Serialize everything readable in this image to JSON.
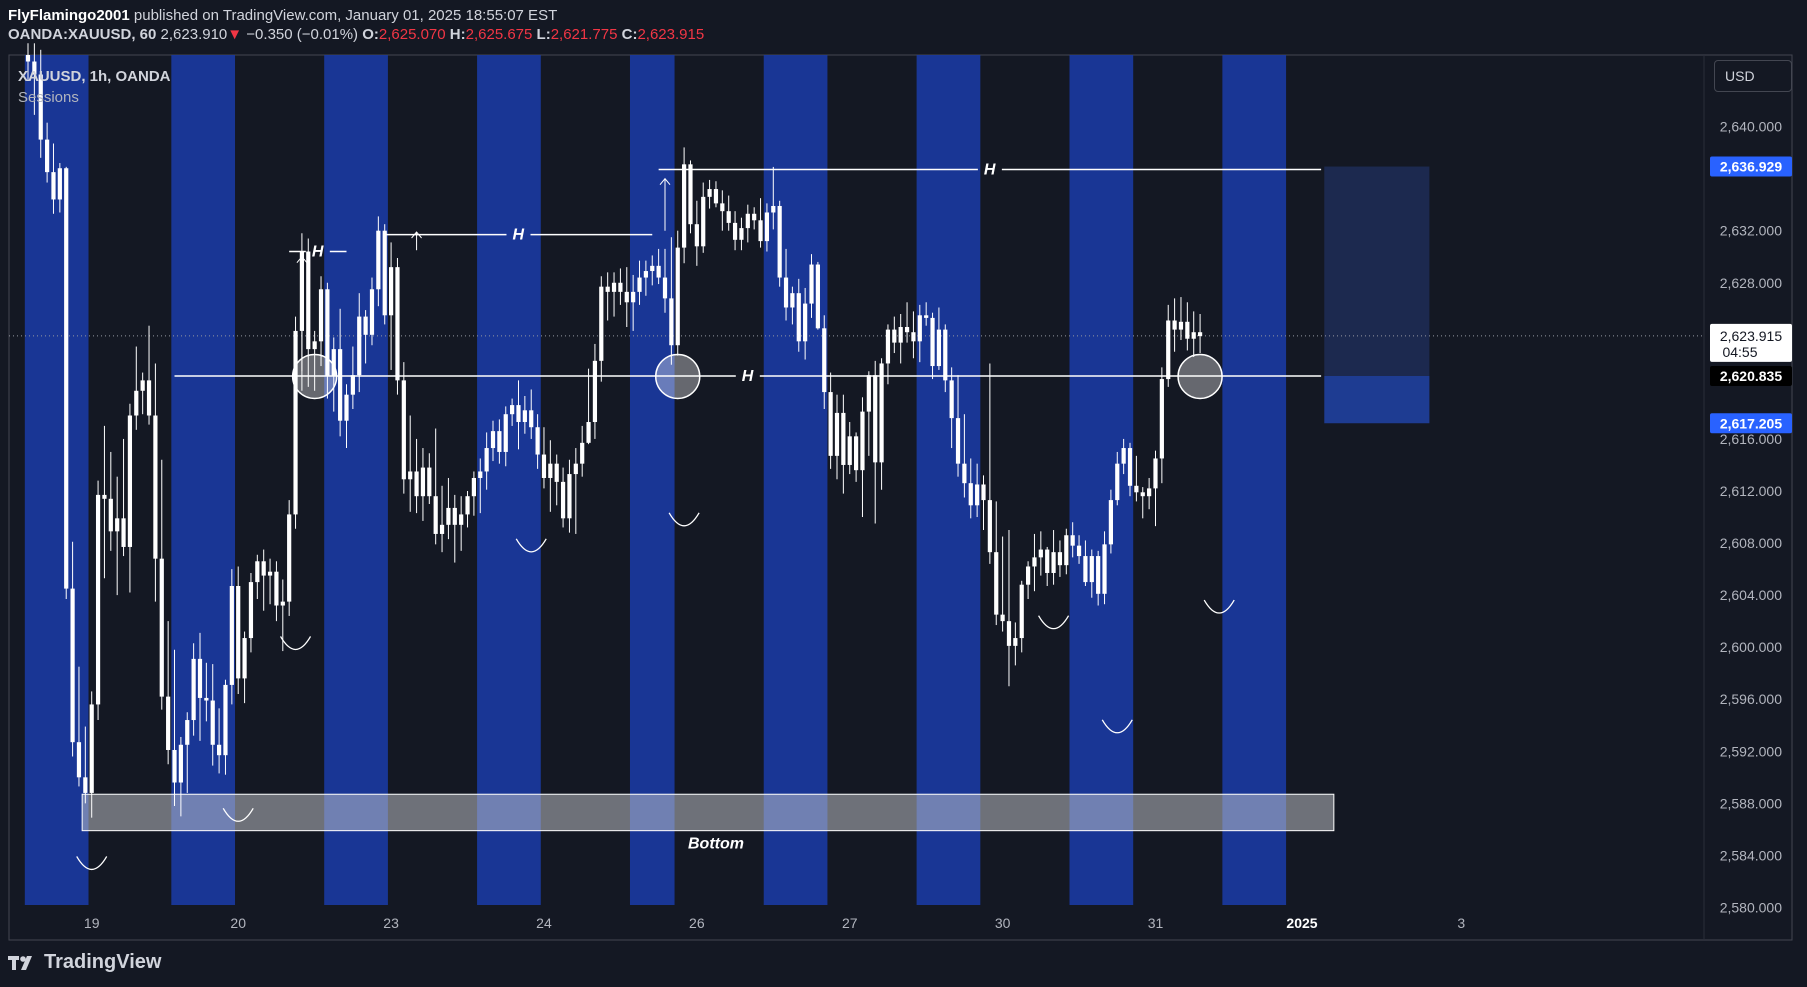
{
  "header": {
    "author": "FlyFlamingo2001",
    "published_text": "published on TradingView.com, January 01, 2025 18:55:07 EST",
    "symbol": "OANDA:XAUUSD, 60",
    "last": "2,623.910",
    "change_arrow": "▼",
    "change": "−0.350 (−0.01%)",
    "o_label": "O:",
    "o_val": "2,625.070",
    "h_label": "H:",
    "h_val": "2,625.675",
    "l_label": "L:",
    "l_val": "2,621.775",
    "c_label": "C:",
    "c_val": "2,623.915"
  },
  "legend": {
    "title": "XAUUSD, 1h, OANDA",
    "indicator": "Sessions"
  },
  "currency": "USD",
  "footer": {
    "brand": "TradingView"
  },
  "colors": {
    "background": "#141823",
    "session": "#1a3aa0",
    "bull": "#ffffff",
    "bear": "#ffffff",
    "box_bottom": "#c8cad0",
    "target_box": "#1c2a52",
    "label_blue": "#2962ff"
  },
  "chart_data": {
    "type": "candlestick",
    "ylim": [
      2577.5,
      2645.5
    ],
    "y_ticks": [
      2640,
      2632,
      2628,
      2616,
      2612,
      2608,
      2604,
      2600,
      2596,
      2592,
      2588,
      2584,
      2580
    ],
    "y_tick_labels": [
      "2,640.000",
      "2,632.000",
      "2,628.000",
      "2,616.000",
      "2,612.000",
      "2,608.000",
      "2,604.000",
      "2,600.000",
      "2,596.000",
      "2,592.000",
      "2,588.000",
      "2,584.000",
      "2,580.000"
    ],
    "x_labels": [
      {
        "label": "19",
        "bar": 10
      },
      {
        "label": "20",
        "bar": 33
      },
      {
        "label": "23",
        "bar": 57
      },
      {
        "label": "24",
        "bar": 81
      },
      {
        "label": "26",
        "bar": 105
      },
      {
        "label": "27",
        "bar": 129
      },
      {
        "label": "30",
        "bar": 153
      },
      {
        "label": "31",
        "bar": 177
      },
      {
        "label": "2025",
        "bar": 200
      },
      {
        "label": "3",
        "bar": 225
      }
    ],
    "current_price": {
      "value": 2623.915,
      "label": "2,623.915",
      "countdown": "04:55"
    },
    "price_labels": [
      {
        "value": 2636.929,
        "label": "2,636.929",
        "style": "blue"
      },
      {
        "value": 2620.835,
        "label": "2,620.835",
        "style": "black"
      },
      {
        "value": 2617.205,
        "label": "2,617.205",
        "style": "blue"
      }
    ],
    "session_ranges": [
      [
        0,
        9
      ],
      [
        23,
        32
      ],
      [
        47,
        56
      ],
      [
        71,
        80
      ],
      [
        95,
        101
      ],
      [
        116,
        125
      ],
      [
        140,
        149
      ],
      [
        164,
        173
      ],
      [
        188,
        197
      ]
    ],
    "candles_ohlc": [
      [
        2645.5,
        2646.4,
        2643.5,
        2645.0
      ],
      [
        2645.0,
        2646.4,
        2640.9,
        2644.0
      ],
      [
        2644.0,
        2645.9,
        2637.6,
        2639.0
      ],
      [
        2639.0,
        2640.3,
        2635.7,
        2636.5
      ],
      [
        2636.5,
        2638.7,
        2633.3,
        2634.4
      ],
      [
        2634.4,
        2637.2,
        2633.4,
        2636.8
      ],
      [
        2636.8,
        2636.9,
        2603.7,
        2604.5
      ],
      [
        2604.5,
        2608.1,
        2591.6,
        2592.7
      ],
      [
        2592.7,
        2598.5,
        2589.3,
        2590.0
      ],
      [
        2590.0,
        2593.9,
        2588.0,
        2588.8
      ],
      [
        2588.8,
        2596.6,
        2586.9,
        2595.6
      ],
      [
        2595.6,
        2612.8,
        2594.4,
        2611.7
      ],
      [
        2611.7,
        2617.0,
        2605.3,
        2611.4
      ],
      [
        2611.4,
        2615.0,
        2607.4,
        2608.9
      ],
      [
        2608.9,
        2613.1,
        2604.0,
        2609.9
      ],
      [
        2609.9,
        2616.0,
        2607.0,
        2607.7
      ],
      [
        2607.7,
        2618.7,
        2604.2,
        2617.8
      ],
      [
        2617.8,
        2623.1,
        2616.7,
        2619.7
      ],
      [
        2619.7,
        2621.1,
        2617.9,
        2620.5
      ],
      [
        2620.5,
        2624.7,
        2617.1,
        2617.8
      ],
      [
        2617.8,
        2621.8,
        2603.5,
        2606.8
      ],
      [
        2606.8,
        2614.4,
        2595.2,
        2596.2
      ],
      [
        2596.2,
        2602.0,
        2591.0,
        2592.1
      ],
      [
        2592.1,
        2599.8,
        2587.8,
        2589.6
      ],
      [
        2589.6,
        2593.1,
        2587.0,
        2592.5
      ],
      [
        2592.5,
        2595.0,
        2588.8,
        2594.4
      ],
      [
        2594.4,
        2600.3,
        2593.2,
        2599.1
      ],
      [
        2599.1,
        2601.1,
        2592.8,
        2596.1
      ],
      [
        2596.1,
        2598.8,
        2594.3,
        2595.9
      ],
      [
        2595.9,
        2598.7,
        2590.9,
        2592.5
      ],
      [
        2592.5,
        2595.3,
        2590.3,
        2591.7
      ],
      [
        2591.7,
        2597.5,
        2590.2,
        2597.1
      ],
      [
        2597.1,
        2606.0,
        2595.6,
        2604.7
      ],
      [
        2604.7,
        2606.2,
        2596.4,
        2597.6
      ],
      [
        2597.6,
        2601.2,
        2595.7,
        2600.7
      ],
      [
        2600.7,
        2605.7,
        2599.6,
        2605.0
      ],
      [
        2605.0,
        2607.1,
        2603.7,
        2606.6
      ],
      [
        2606.6,
        2607.5,
        2602.8,
        2605.5
      ],
      [
        2605.5,
        2606.8,
        2603.3,
        2605.8
      ],
      [
        2605.8,
        2606.6,
        2602.0,
        2603.2
      ],
      [
        2603.2,
        2605.2,
        2599.7,
        2603.5
      ],
      [
        2603.5,
        2611.3,
        2602.4,
        2610.2
      ],
      [
        2610.2,
        2625.4,
        2609.1,
        2624.3
      ],
      [
        2624.3,
        2631.8,
        2619.7,
        2630.4
      ],
      [
        2630.4,
        2631.4,
        2620.0,
        2622.9
      ],
      [
        2622.9,
        2624.3,
        2619.7,
        2623.5
      ],
      [
        2623.5,
        2628.5,
        2621.6,
        2627.5
      ],
      [
        2627.5,
        2628.0,
        2619.1,
        2620.8
      ],
      [
        2620.8,
        2623.8,
        2618.1,
        2622.9
      ],
      [
        2622.9,
        2626.0,
        2616.2,
        2617.4
      ],
      [
        2617.4,
        2620.2,
        2615.3,
        2619.4
      ],
      [
        2619.4,
        2623.1,
        2618.3,
        2620.9
      ],
      [
        2620.9,
        2627.2,
        2619.6,
        2625.4
      ],
      [
        2625.4,
        2625.9,
        2621.8,
        2624.0
      ],
      [
        2624.0,
        2628.4,
        2623.2,
        2627.5
      ],
      [
        2627.5,
        2633.1,
        2626.2,
        2632.0
      ],
      [
        2632.0,
        2632.5,
        2624.8,
        2625.5
      ],
      [
        2625.5,
        2631.1,
        2621.3,
        2629.2
      ],
      [
        2629.2,
        2629.9,
        2619.4,
        2620.5
      ],
      [
        2620.5,
        2621.9,
        2611.8,
        2612.9
      ],
      [
        2612.9,
        2617.8,
        2610.4,
        2613.5
      ],
      [
        2613.5,
        2616.0,
        2610.3,
        2611.6
      ],
      [
        2611.6,
        2615.3,
        2609.7,
        2613.8
      ],
      [
        2613.8,
        2614.9,
        2611.0,
        2611.6
      ],
      [
        2611.6,
        2616.8,
        2607.9,
        2608.7
      ],
      [
        2608.7,
        2612.4,
        2607.3,
        2609.4
      ],
      [
        2609.4,
        2613.0,
        2608.3,
        2610.7
      ],
      [
        2610.7,
        2611.7,
        2606.5,
        2609.4
      ],
      [
        2609.4,
        2611.6,
        2607.4,
        2610.2
      ],
      [
        2610.2,
        2612.0,
        2609.2,
        2611.6
      ],
      [
        2611.6,
        2613.5,
        2610.1,
        2613.0
      ],
      [
        2613.0,
        2614.5,
        2610.3,
        2613.5
      ],
      [
        2613.5,
        2616.5,
        2612.1,
        2615.3
      ],
      [
        2615.3,
        2617.4,
        2614.3,
        2616.6
      ],
      [
        2616.6,
        2617.5,
        2614.1,
        2615.0
      ],
      [
        2615.0,
        2618.5,
        2613.9,
        2617.9
      ],
      [
        2617.9,
        2619.1,
        2617.0,
        2618.6
      ],
      [
        2618.6,
        2620.5,
        2615.2,
        2617.3
      ],
      [
        2617.3,
        2619.3,
        2616.4,
        2618.2
      ],
      [
        2618.2,
        2619.8,
        2616.0,
        2616.9
      ],
      [
        2616.9,
        2617.9,
        2613.7,
        2614.8
      ],
      [
        2614.8,
        2616.9,
        2612.2,
        2613.0
      ],
      [
        2613.0,
        2615.9,
        2610.4,
        2614.1
      ],
      [
        2614.1,
        2614.8,
        2610.9,
        2612.7
      ],
      [
        2612.7,
        2613.8,
        2609.2,
        2609.9
      ],
      [
        2609.9,
        2614.4,
        2608.8,
        2613.3
      ],
      [
        2613.3,
        2615.3,
        2608.7,
        2614.1
      ],
      [
        2614.1,
        2617.0,
        2613.1,
        2615.7
      ],
      [
        2615.7,
        2621.4,
        2615.6,
        2617.3
      ],
      [
        2617.3,
        2623.3,
        2616.0,
        2622.0
      ],
      [
        2622.0,
        2628.5,
        2620.4,
        2627.7
      ],
      [
        2627.7,
        2628.8,
        2625.1,
        2627.3
      ],
      [
        2627.3,
        2628.8,
        2625.4,
        2628.0
      ],
      [
        2628.0,
        2629.1,
        2626.3,
        2627.3
      ],
      [
        2627.3,
        2629.2,
        2624.6,
        2626.5
      ],
      [
        2626.5,
        2628.6,
        2624.3,
        2627.3
      ],
      [
        2627.3,
        2629.7,
        2626.3,
        2628.4
      ],
      [
        2628.4,
        2629.7,
        2627.0,
        2628.9
      ],
      [
        2628.9,
        2630.1,
        2627.8,
        2629.3
      ],
      [
        2629.3,
        2630.6,
        2627.9,
        2628.4
      ],
      [
        2628.4,
        2630.6,
        2625.7,
        2626.8
      ],
      [
        2626.8,
        2631.5,
        2621.7,
        2623.2
      ],
      [
        2623.2,
        2632.0,
        2622.4,
        2630.7
      ],
      [
        2630.7,
        2638.4,
        2629.5,
        2637.1
      ],
      [
        2637.1,
        2637.4,
        2631.8,
        2632.5
      ],
      [
        2632.5,
        2634.3,
        2629.3,
        2630.8
      ],
      [
        2630.8,
        2635.7,
        2630.3,
        2634.6
      ],
      [
        2634.6,
        2635.9,
        2633.7,
        2635.2
      ],
      [
        2635.2,
        2635.8,
        2633.8,
        2634.1
      ],
      [
        2634.1,
        2635.1,
        2632.0,
        2633.5
      ],
      [
        2633.5,
        2634.7,
        2632.0,
        2632.6
      ],
      [
        2632.6,
        2633.5,
        2630.5,
        2631.3
      ],
      [
        2631.3,
        2633.0,
        2630.5,
        2632.2
      ],
      [
        2632.2,
        2634.0,
        2631.1,
        2633.3
      ],
      [
        2633.3,
        2633.8,
        2632.1,
        2632.8
      ],
      [
        2632.8,
        2634.5,
        2630.7,
        2631.2
      ],
      [
        2631.2,
        2634.1,
        2630.4,
        2633.4
      ],
      [
        2633.4,
        2636.9,
        2632.1,
        2633.9
      ],
      [
        2633.9,
        2634.3,
        2627.7,
        2628.4
      ],
      [
        2628.4,
        2630.6,
        2625.1,
        2626.1
      ],
      [
        2626.1,
        2627.7,
        2624.8,
        2627.2
      ],
      [
        2627.2,
        2628.3,
        2622.7,
        2623.5
      ],
      [
        2623.5,
        2627.6,
        2622.1,
        2626.4
      ],
      [
        2626.4,
        2630.2,
        2625.3,
        2629.4
      ],
      [
        2629.4,
        2629.6,
        2624.4,
        2624.5
      ],
      [
        2624.5,
        2625.5,
        2618.3,
        2619.6
      ],
      [
        2619.6,
        2621.1,
        2613.7,
        2614.7
      ],
      [
        2614.7,
        2619.4,
        2612.9,
        2618.0
      ],
      [
        2618.0,
        2619.4,
        2611.8,
        2614.0
      ],
      [
        2614.0,
        2617.3,
        2613.3,
        2616.2
      ],
      [
        2616.2,
        2616.5,
        2612.7,
        2613.6
      ],
      [
        2613.6,
        2619.2,
        2610.0,
        2618.1
      ],
      [
        2618.1,
        2621.2,
        2614.7,
        2620.9
      ],
      [
        2620.9,
        2622.0,
        2609.5,
        2614.2
      ],
      [
        2614.2,
        2622.2,
        2612.1,
        2621.8
      ],
      [
        2621.8,
        2624.8,
        2620.2,
        2624.4
      ],
      [
        2624.4,
        2625.4,
        2622.6,
        2623.4
      ],
      [
        2623.4,
        2625.6,
        2621.8,
        2624.6
      ],
      [
        2624.6,
        2626.5,
        2623.4,
        2624.2
      ],
      [
        2624.2,
        2625.8,
        2622.2,
        2623.5
      ],
      [
        2623.5,
        2626.3,
        2621.9,
        2625.5
      ],
      [
        2625.5,
        2626.5,
        2624.7,
        2625.3
      ],
      [
        2625.3,
        2625.7,
        2620.6,
        2621.6
      ],
      [
        2621.6,
        2626.1,
        2621.3,
        2624.4
      ],
      [
        2624.4,
        2624.8,
        2619.6,
        2620.5
      ],
      [
        2620.5,
        2621.5,
        2615.3,
        2617.6
      ],
      [
        2617.6,
        2620.9,
        2613.1,
        2614.1
      ],
      [
        2614.1,
        2617.9,
        2611.5,
        2612.6
      ],
      [
        2612.6,
        2614.5,
        2609.9,
        2610.9
      ],
      [
        2610.9,
        2614.1,
        2610.0,
        2612.5
      ],
      [
        2612.5,
        2613.2,
        2609.0,
        2611.3
      ],
      [
        2611.3,
        2621.8,
        2606.4,
        2607.3
      ],
      [
        2607.3,
        2611.2,
        2601.7,
        2602.5
      ],
      [
        2602.5,
        2608.5,
        2601.2,
        2602.0
      ],
      [
        2602.0,
        2609.0,
        2597.0,
        2600.1
      ],
      [
        2600.1,
        2601.9,
        2598.6,
        2600.7
      ],
      [
        2600.7,
        2605.1,
        2599.6,
        2604.8
      ],
      [
        2604.8,
        2606.6,
        2603.7,
        2606.2
      ],
      [
        2606.2,
        2608.7,
        2604.3,
        2606.9
      ],
      [
        2606.9,
        2608.9,
        2605.5,
        2607.5
      ],
      [
        2607.5,
        2607.7,
        2604.7,
        2605.7
      ],
      [
        2605.7,
        2609.0,
        2604.8,
        2607.3
      ],
      [
        2607.3,
        2608.2,
        2605.4,
        2606.3
      ],
      [
        2606.3,
        2609.1,
        2605.6,
        2608.6
      ],
      [
        2608.6,
        2609.6,
        2606.9,
        2607.8
      ],
      [
        2607.8,
        2608.6,
        2606.4,
        2607.0
      ],
      [
        2607.0,
        2608.2,
        2604.7,
        2605.0
      ],
      [
        2605.0,
        2607.5,
        2603.8,
        2607.0
      ],
      [
        2607.0,
        2607.4,
        2603.2,
        2604.1
      ],
      [
        2604.1,
        2608.9,
        2603.3,
        2607.9
      ],
      [
        2607.9,
        2612.1,
        2607.2,
        2611.3
      ],
      [
        2611.3,
        2615.0,
        2610.9,
        2614.1
      ],
      [
        2614.1,
        2616.0,
        2613.3,
        2615.3
      ],
      [
        2615.3,
        2615.7,
        2611.6,
        2612.4
      ],
      [
        2612.4,
        2614.7,
        2611.2,
        2611.9
      ],
      [
        2611.9,
        2612.3,
        2609.9,
        2611.6
      ],
      [
        2611.6,
        2613.0,
        2610.6,
        2612.2
      ],
      [
        2612.2,
        2615.1,
        2609.3,
        2614.5
      ],
      [
        2614.5,
        2621.5,
        2612.6,
        2620.6
      ],
      [
        2620.6,
        2626.3,
        2620.0,
        2625.1
      ],
      [
        2625.1,
        2626.8,
        2622.7,
        2624.4
      ],
      [
        2624.4,
        2626.9,
        2623.6,
        2625.0
      ],
      [
        2625.0,
        2626.5,
        2622.8,
        2623.7
      ],
      [
        2623.7,
        2625.8,
        2622.3,
        2624.2
      ],
      [
        2624.2,
        2625.6,
        2622.6,
        2623.9
      ]
    ],
    "horizontal_levels": [
      {
        "label": "H",
        "value": 2636.7,
        "from_bar": 99,
        "to_bar": 203
      },
      {
        "label": "H",
        "value": 2631.7,
        "from_bar": 56,
        "to_bar": 98
      },
      {
        "label": "H",
        "value": 2630.4,
        "from_bar": 41,
        "to_bar": 50
      },
      {
        "label": "H",
        "value": 2620.835,
        "from_bar": 23,
        "to_bar": 203
      }
    ],
    "zones": [
      {
        "label": "Bottom",
        "low": 2585.9,
        "high": 2588.7,
        "from_bar": 9,
        "to_bar": 205
      },
      {
        "label": "",
        "low": 2620.835,
        "high": 2636.929,
        "from_bar": 204,
        "to_bar": 220
      },
      {
        "label": "",
        "low": 2617.205,
        "high": 2620.835,
        "from_bar": 204,
        "to_bar": 220
      }
    ],
    "circles": [
      {
        "bar": 45,
        "value": 2620.8
      },
      {
        "bar": 102,
        "value": 2620.8
      },
      {
        "bar": 184,
        "value": 2620.8
      }
    ],
    "arrows_up": [
      {
        "bar": 43,
        "from": 2621.2,
        "to": 2630.0
      },
      {
        "bar": 100,
        "from": 2632.0,
        "to": 2636.0
      },
      {
        "bar": 61,
        "from": 2630.5,
        "to": 2631.9
      }
    ],
    "bottom_curves": [
      {
        "bar": 10,
        "value": 2583.0
      },
      {
        "bar": 33,
        "value": 2586.7
      },
      {
        "bar": 42,
        "value": 2599.9
      },
      {
        "bar": 79,
        "value": 2607.4
      },
      {
        "bar": 103,
        "value": 2609.4
      },
      {
        "bar": 171,
        "value": 2593.5
      },
      {
        "bar": 187,
        "value": 2602.7
      },
      {
        "bar": 161,
        "value": 2601.5
      }
    ]
  }
}
